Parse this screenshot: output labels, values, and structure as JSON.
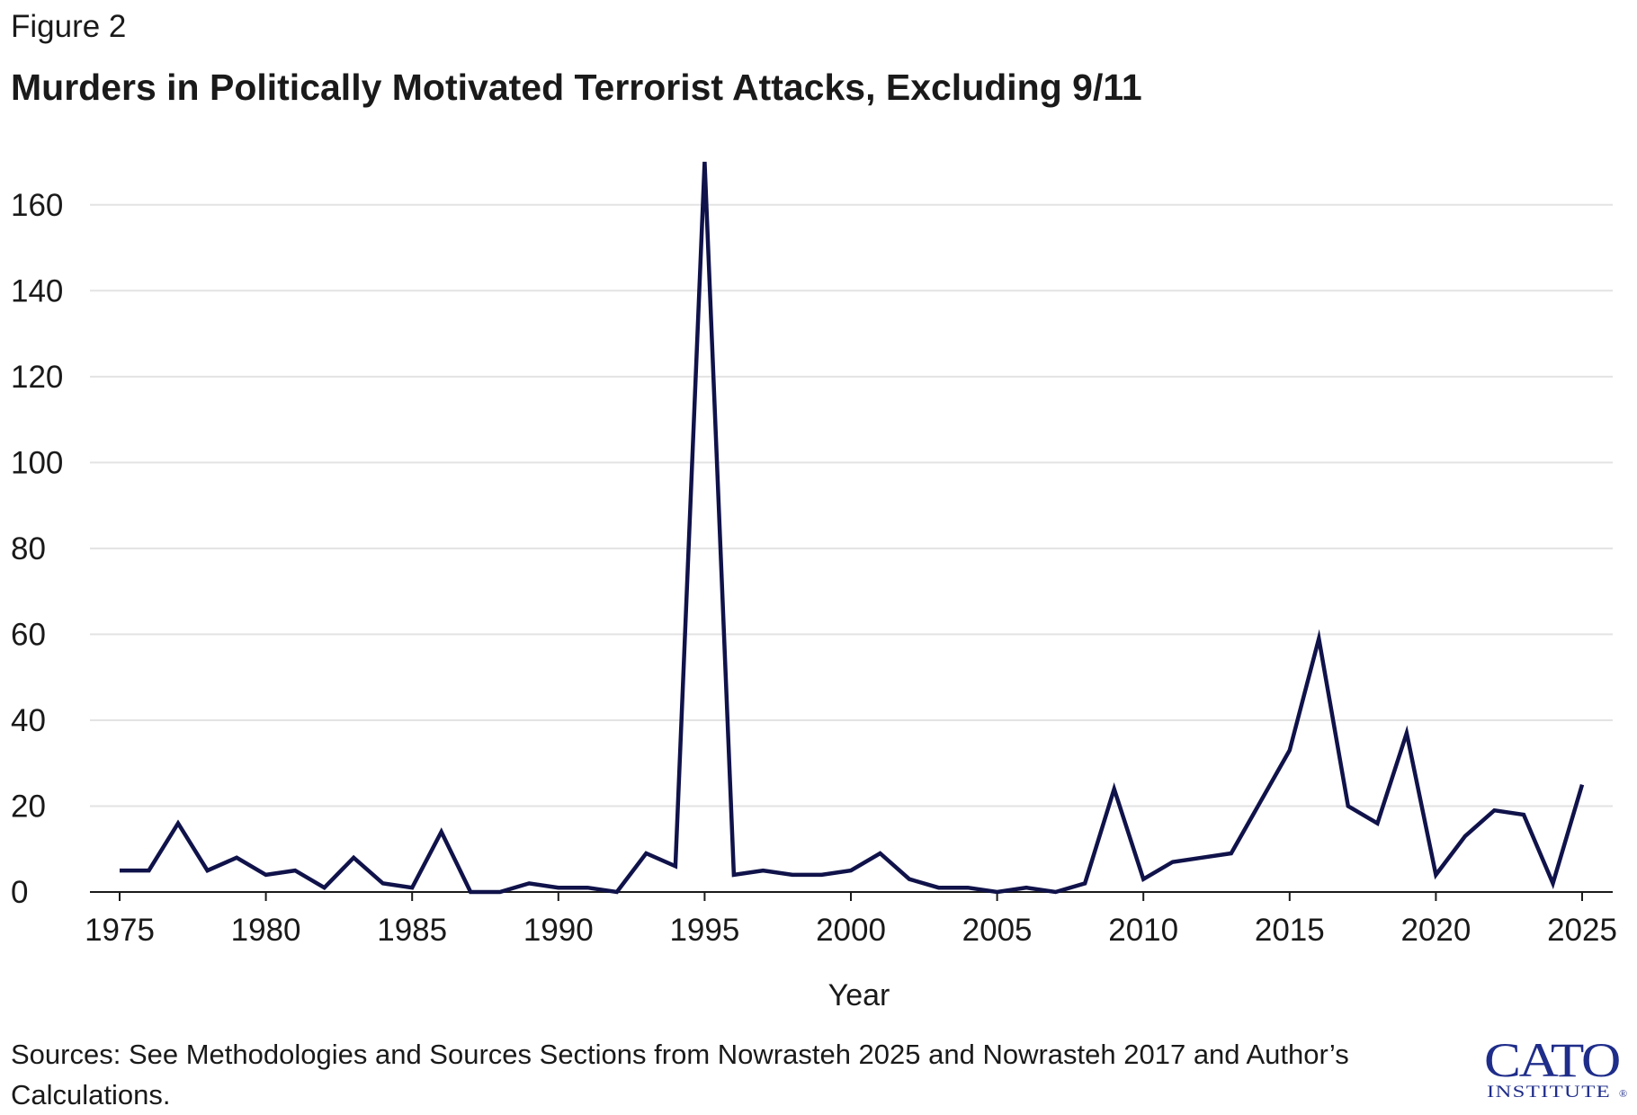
{
  "figure_label": "Figure 2",
  "source_note": "Sources: See Methodologies and Sources Sections from Nowrasteh 2025 and Nowrasteh 2017 and Author’s Calculations.",
  "logo": {
    "line1": "CATO",
    "line2": "INSTITUTE",
    "registered_mark": "®",
    "color": "#1f2d8a"
  },
  "chart_data": {
    "type": "line",
    "title": "Murders in Politically Motivated Terrorist Attacks, Excluding 9/11",
    "xlabel": "Year",
    "ylabel": "",
    "xlim": [
      1975,
      2025
    ],
    "ylim": [
      0,
      170
    ],
    "xticks": [
      1975,
      1980,
      1985,
      1990,
      1995,
      2000,
      2005,
      2010,
      2015,
      2020,
      2025
    ],
    "yticks": [
      0,
      20,
      40,
      60,
      80,
      100,
      120,
      140,
      160
    ],
    "grid": "horizontal",
    "line_color": "#10124a",
    "x": [
      1975,
      1976,
      1977,
      1978,
      1979,
      1980,
      1981,
      1982,
      1983,
      1984,
      1985,
      1986,
      1987,
      1988,
      1989,
      1990,
      1991,
      1992,
      1993,
      1994,
      1995,
      1996,
      1997,
      1998,
      1999,
      2000,
      2001,
      2002,
      2003,
      2004,
      2005,
      2006,
      2007,
      2008,
      2009,
      2010,
      2011,
      2012,
      2013,
      2014,
      2015,
      2016,
      2017,
      2018,
      2019,
      2020,
      2021,
      2022,
      2023,
      2024,
      2025
    ],
    "series": [
      {
        "values": [
          5,
          5,
          16,
          5,
          8,
          4,
          5,
          1,
          8,
          2,
          1,
          14,
          0,
          0,
          2,
          1,
          1,
          0,
          9,
          6,
          170,
          4,
          5,
          4,
          4,
          5,
          9,
          3,
          1,
          1,
          0,
          1,
          0,
          2,
          24,
          3,
          7,
          8,
          9,
          21,
          33,
          59,
          20,
          16,
          37,
          4,
          13,
          19,
          18,
          2,
          25
        ]
      }
    ]
  }
}
